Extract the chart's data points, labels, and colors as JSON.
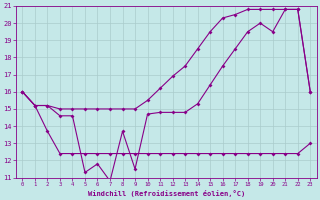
{
  "xlabel": "Windchill (Refroidissement éolien,°C)",
  "background_color": "#c5e8e8",
  "line_color": "#880088",
  "grid_color": "#aacccc",
  "xlim": [
    -0.5,
    23.5
  ],
  "ylim": [
    11,
    21
  ],
  "yticks": [
    11,
    12,
    13,
    14,
    15,
    16,
    17,
    18,
    19,
    20,
    21
  ],
  "xticks": [
    0,
    1,
    2,
    3,
    4,
    5,
    6,
    7,
    8,
    9,
    10,
    11,
    12,
    13,
    14,
    15,
    16,
    17,
    18,
    19,
    20,
    21,
    22,
    23
  ],
  "series1_x": [
    0,
    1,
    2,
    3,
    4,
    5,
    6,
    7,
    8,
    9,
    10,
    11,
    12,
    13,
    14,
    15,
    16,
    17,
    18,
    19,
    20,
    21,
    22,
    23
  ],
  "series1_y": [
    16.0,
    15.2,
    15.2,
    14.6,
    14.6,
    11.3,
    11.8,
    10.8,
    13.7,
    11.5,
    14.7,
    14.8,
    14.8,
    14.8,
    15.3,
    16.4,
    17.5,
    18.5,
    19.5,
    20.0,
    19.5,
    20.8,
    20.8,
    16.0
  ],
  "series2_x": [
    0,
    1,
    2,
    3,
    4,
    5,
    6,
    7,
    8,
    9,
    10,
    11,
    12,
    13,
    14,
    15,
    16,
    17,
    18,
    19,
    20,
    21,
    22,
    23
  ],
  "series2_y": [
    16.0,
    15.2,
    13.7,
    12.4,
    12.4,
    12.4,
    12.4,
    12.4,
    12.4,
    12.4,
    12.4,
    12.4,
    12.4,
    12.4,
    12.4,
    12.4,
    12.4,
    12.4,
    12.4,
    12.4,
    12.4,
    12.4,
    12.4,
    13.0
  ],
  "series3_x": [
    0,
    1,
    2,
    3,
    4,
    5,
    6,
    7,
    8,
    9,
    10,
    11,
    12,
    13,
    14,
    15,
    16,
    17,
    18,
    19,
    20,
    21,
    22,
    23
  ],
  "series3_y": [
    16.0,
    15.2,
    15.2,
    15.0,
    15.0,
    15.0,
    15.0,
    15.0,
    15.0,
    15.0,
    15.5,
    16.2,
    16.9,
    17.5,
    18.5,
    19.5,
    20.3,
    20.5,
    20.8,
    20.8,
    20.8,
    20.8,
    20.8,
    16.0
  ]
}
